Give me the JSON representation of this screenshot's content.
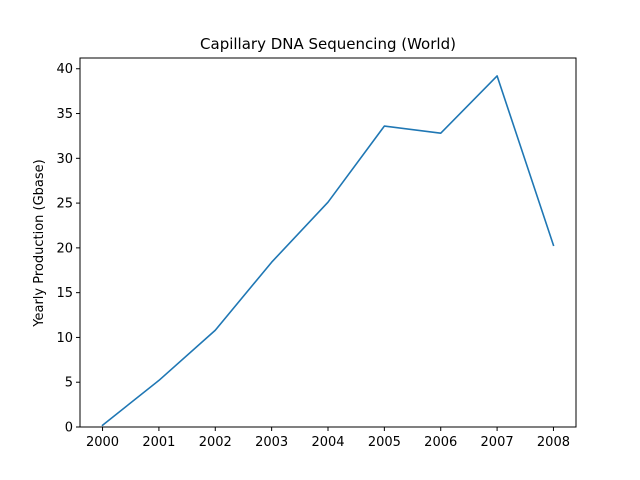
{
  "chart_data": {
    "type": "line",
    "title": "Capillary DNA Sequencing (World)",
    "xlabel": "",
    "ylabel": "Yearly Production (Gbase)",
    "x": [
      2000,
      2001,
      2002,
      2003,
      2004,
      2005,
      2006,
      2007,
      2008
    ],
    "series": [
      {
        "values": [
          0.2,
          5.2,
          10.8,
          18.4,
          25.1,
          33.6,
          32.8,
          39.2,
          20.3
        ],
        "color": "#1f77b4"
      }
    ],
    "xticks": [
      "2000",
      "2001",
      "2002",
      "2003",
      "2004",
      "2005",
      "2006",
      "2007",
      "2008"
    ],
    "yticks": [
      "0",
      "5",
      "10",
      "15",
      "20",
      "25",
      "30",
      "35",
      "40"
    ],
    "xlim": [
      1999.6,
      2008.4
    ],
    "ylim": [
      0,
      41.2
    ],
    "grid": false
  }
}
